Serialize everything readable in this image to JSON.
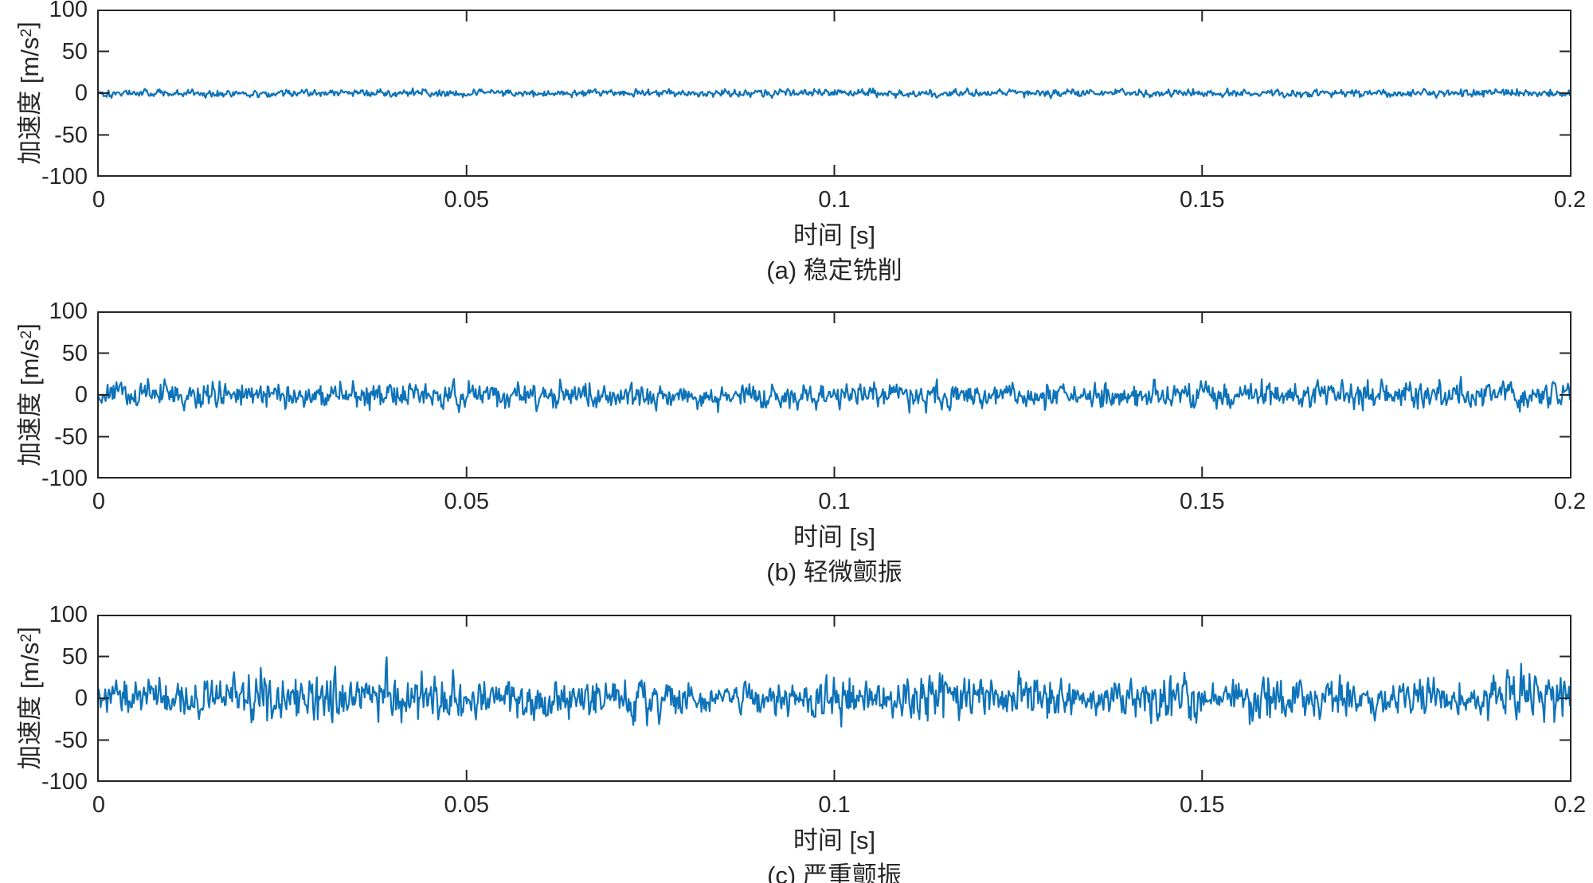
{
  "figure": {
    "background": "#ffffff",
    "line_color": "#0e73b9",
    "axis_color": "#262626",
    "text_color": "#262626"
  },
  "chart_data": [
    {
      "type": "line",
      "subplot": "a",
      "caption": "(a) 稳定铣削",
      "xlabel": "时间 [s]",
      "ylabel": {
        "prefix": "加速度 [m/s",
        "sup": "2",
        "suffix": "]"
      },
      "xlim": [
        0,
        0.2
      ],
      "ylim": [
        -100,
        100
      ],
      "grid": false,
      "legend": null,
      "xticks": [
        {
          "v": 0,
          "label": "0"
        },
        {
          "v": 0.05,
          "label": "0.05"
        },
        {
          "v": 0.1,
          "label": "0.1"
        },
        {
          "v": 0.15,
          "label": "0.15"
        },
        {
          "v": 0.2,
          "label": "0.2"
        }
      ],
      "yticks": [
        {
          "v": 100,
          "label": "100"
        },
        {
          "v": 50,
          "label": "50"
        },
        {
          "v": 0,
          "label": "0"
        },
        {
          "v": -50,
          "label": "-50"
        },
        {
          "v": -100,
          "label": "-100"
        }
      ],
      "signal": {
        "kind": "band-limited-random-noise",
        "description": "stable milling vibration, near-constant small amplitude",
        "n_points": 1500,
        "seed": 101,
        "std": 3.0,
        "typical_peak": 9,
        "bursts": []
      }
    },
    {
      "type": "line",
      "subplot": "b",
      "caption": "(b) 轻微颤振",
      "xlabel": "时间 [s]",
      "ylabel": {
        "prefix": "加速度 [m/s",
        "sup": "2",
        "suffix": "]"
      },
      "xlim": [
        0,
        0.2
      ],
      "ylim": [
        -100,
        100
      ],
      "grid": false,
      "legend": null,
      "xticks": [
        {
          "v": 0,
          "label": "0"
        },
        {
          "v": 0.05,
          "label": "0.05"
        },
        {
          "v": 0.1,
          "label": "0.1"
        },
        {
          "v": 0.15,
          "label": "0.15"
        },
        {
          "v": 0.2,
          "label": "0.2"
        }
      ],
      "yticks": [
        {
          "v": 100,
          "label": "100"
        },
        {
          "v": 50,
          "label": "50"
        },
        {
          "v": 0,
          "label": "0"
        },
        {
          "v": -50,
          "label": "-50"
        },
        {
          "v": -100,
          "label": "-100"
        }
      ],
      "signal": {
        "kind": "band-limited-random-noise",
        "description": "slight chatter, moderate amplitude",
        "n_points": 1500,
        "seed": 202,
        "std": 10.0,
        "typical_peak": 30,
        "bursts": []
      }
    },
    {
      "type": "line",
      "subplot": "c",
      "caption": "(c) 严重颤振",
      "xlabel": "时间 [s]",
      "ylabel": {
        "prefix": "加速度 [m/s",
        "sup": "2",
        "suffix": "]"
      },
      "xlim": [
        0,
        0.2
      ],
      "ylim": [
        -100,
        100
      ],
      "grid": false,
      "legend": null,
      "xticks": [
        {
          "v": 0,
          "label": "0"
        },
        {
          "v": 0.05,
          "label": "0.05"
        },
        {
          "v": 0.1,
          "label": "0.1"
        },
        {
          "v": 0.15,
          "label": "0.15"
        },
        {
          "v": 0.2,
          "label": "0.2"
        }
      ],
      "yticks": [
        {
          "v": 100,
          "label": "100"
        },
        {
          "v": 50,
          "label": "50"
        },
        {
          "v": 0,
          "label": "0"
        },
        {
          "v": -50,
          "label": "-50"
        },
        {
          "v": -100,
          "label": "-100"
        }
      ],
      "signal": {
        "kind": "band-limited-random-noise",
        "description": "severe chatter, large amplitude with intermittent bursts up to about ±75",
        "n_points": 1600,
        "seed": 303,
        "std": 12.5,
        "typical_peak": 40,
        "bursts": [
          {
            "t": 0.023,
            "gain": 0.75,
            "width": 0.0035
          },
          {
            "t": 0.0305,
            "gain": 0.85,
            "width": 0.003
          },
          {
            "t": 0.038,
            "gain": 0.9,
            "width": 0.0035
          },
          {
            "t": 0.0455,
            "gain": 0.6,
            "width": 0.003
          },
          {
            "t": 0.062,
            "gain": 0.35,
            "width": 0.004
          },
          {
            "t": 0.076,
            "gain": 0.45,
            "width": 0.003
          },
          {
            "t": 0.1005,
            "gain": 0.8,
            "width": 0.0025
          },
          {
            "t": 0.113,
            "gain": 0.4,
            "width": 0.004
          },
          {
            "t": 0.1265,
            "gain": 0.55,
            "width": 0.003
          },
          {
            "t": 0.1455,
            "gain": 0.55,
            "width": 0.0035
          },
          {
            "t": 0.159,
            "gain": 0.5,
            "width": 0.003
          },
          {
            "t": 0.1695,
            "gain": 0.45,
            "width": 0.003
          },
          {
            "t": 0.1925,
            "gain": 0.95,
            "width": 0.0025
          },
          {
            "t": 0.1965,
            "gain": 0.6,
            "width": 0.002
          }
        ]
      }
    }
  ]
}
